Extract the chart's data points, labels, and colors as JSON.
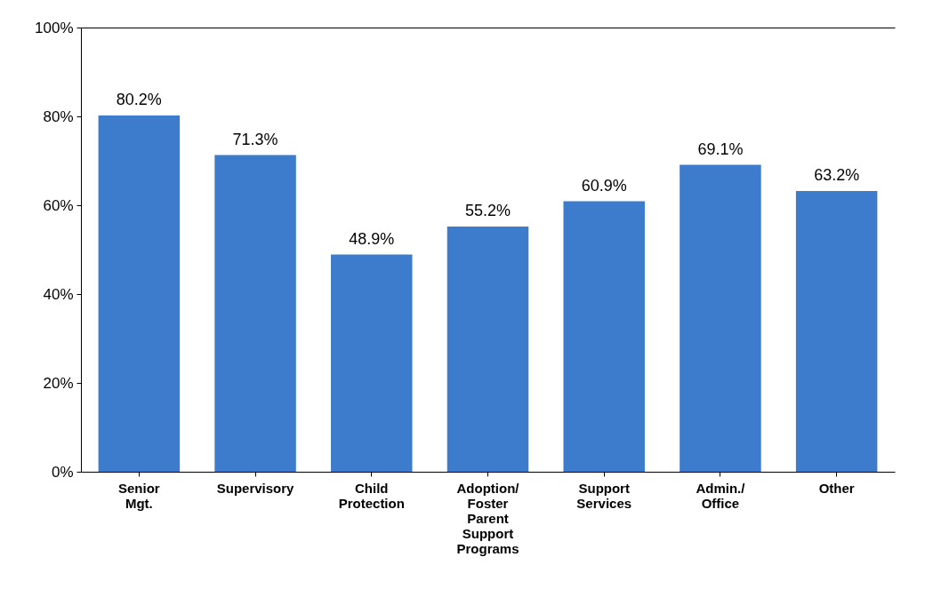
{
  "chart_data": {
    "type": "bar",
    "categories": [
      "Senior Mgt.",
      "Supervisory",
      "Child Protection",
      "Adoption/ Foster Parent Support Programs",
      "Support Services",
      "Admin./ Office",
      "Other"
    ],
    "values": [
      80.2,
      71.3,
      48.9,
      55.2,
      60.9,
      69.1,
      63.2
    ],
    "value_labels": [
      "80.2%",
      "71.3%",
      "48.9%",
      "55.2%",
      "60.9%",
      "69.1%",
      "63.2%"
    ],
    "color": "#3d7ccc",
    "ylim": [
      0,
      100
    ],
    "yticks": [
      {
        "value": 0,
        "label": "0%"
      },
      {
        "value": 20,
        "label": "20%"
      },
      {
        "value": 40,
        "label": "40%"
      },
      {
        "value": 60,
        "label": "60%"
      },
      {
        "value": 80,
        "label": "80%"
      },
      {
        "value": 100,
        "label": "100%"
      }
    ],
    "grid": false
  }
}
